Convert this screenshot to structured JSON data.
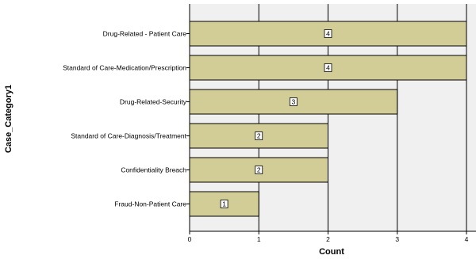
{
  "chart_data": {
    "type": "bar",
    "orientation": "horizontal",
    "title": "",
    "xlabel": "Count",
    "ylabel": "Case_Category1",
    "categories": [
      "Drug-Related - Patient Care",
      "Standard of Care-Medication/Prescription",
      "Drug-Related-Security",
      "Standard of Care-Diagnosis/Treatment",
      "Confidentiality Breach",
      "Fraud-Non-Patient Care"
    ],
    "values": [
      4,
      4,
      3,
      2,
      2,
      1
    ],
    "xlim": [
      0,
      4.2
    ],
    "xticks": [
      "0",
      "1",
      "2",
      "3",
      "4"
    ],
    "grid": true,
    "legend": "none",
    "colors": {
      "bar_fill": "#d2cd96",
      "bar_stroke": "#000000",
      "plot_background": "#f0f0f0",
      "gridline": "#000000"
    }
  }
}
